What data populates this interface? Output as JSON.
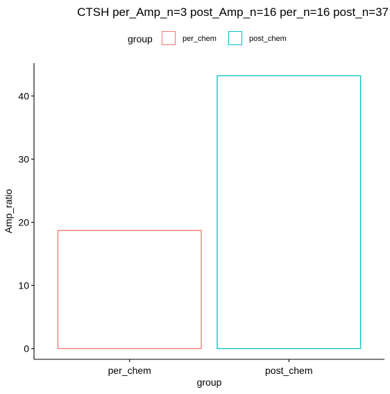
{
  "chart_data": {
    "type": "bar",
    "title": "CTSH per_Amp_n=3 post_Amp_n=16 per_n=16 post_n=37",
    "xlabel": "group",
    "ylabel": "Amp_ratio",
    "categories": [
      "per_chem",
      "post_chem"
    ],
    "values": [
      18.7,
      43.2
    ],
    "colors": [
      "#F8766D",
      "#00BFC4"
    ],
    "ylim": [
      -1.7,
      45.2
    ],
    "yticks": [
      0,
      10,
      20,
      30,
      40
    ],
    "grid": false,
    "legend": {
      "title": "group",
      "placement": "top",
      "entries": [
        "per_chem",
        "post_chem"
      ]
    }
  }
}
